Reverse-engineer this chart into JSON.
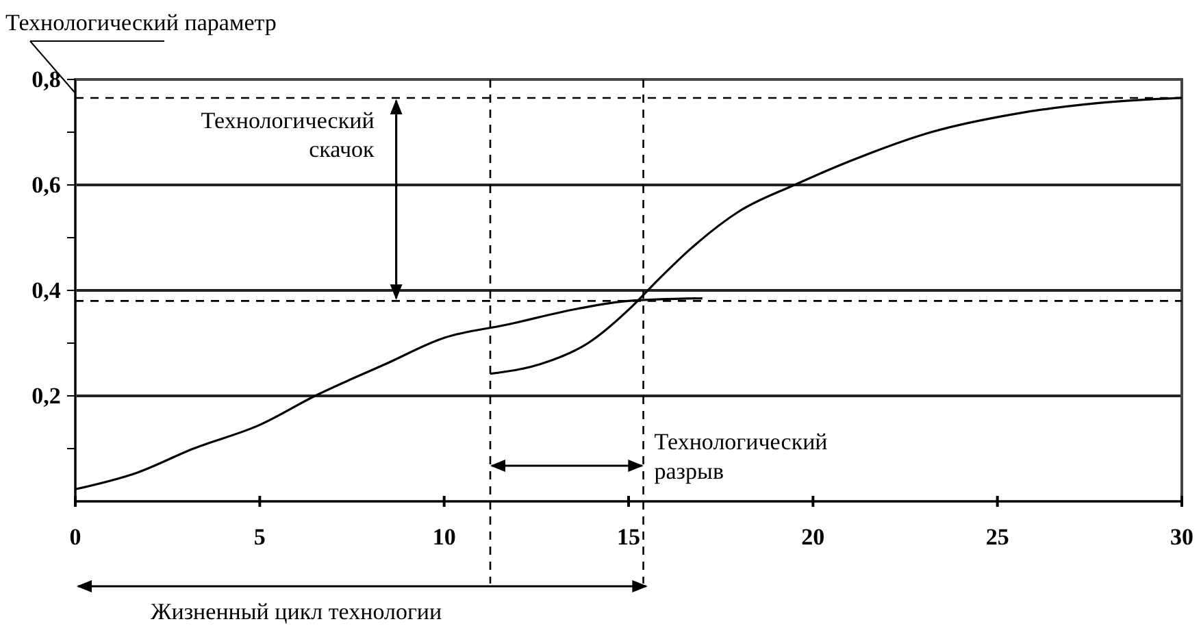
{
  "chart_data": {
    "type": "line",
    "ylabel": "Технологический параметр",
    "xlim": [
      0,
      30
    ],
    "xticks": [
      0,
      5,
      10,
      15,
      20,
      25,
      30
    ],
    "ylim": [
      0,
      0.8
    ],
    "yticks": [
      {
        "value": 0.1,
        "label": null
      },
      {
        "value": 0.2,
        "label": "0,2"
      },
      {
        "value": 0.3,
        "label": null
      },
      {
        "value": 0.4,
        "label": "0,4"
      },
      {
        "value": 0.5,
        "label": null
      },
      {
        "value": 0.6,
        "label": "0,6"
      },
      {
        "value": 0.7,
        "label": null
      },
      {
        "value": 0.8,
        "label": "0,8"
      }
    ],
    "grid": "y",
    "series": [
      {
        "color": "#000000",
        "x": [
          0,
          1.7,
          3.2,
          5,
          6.5,
          8.4,
          10,
          11.7,
          13.6,
          15,
          17
        ],
        "values": [
          0.023,
          0.055,
          0.1,
          0.145,
          0.2,
          0.26,
          0.31,
          0.335,
          0.365,
          0.38,
          0.385
        ]
      },
      {
        "color": "#000000",
        "x": [
          11.25,
          12.6,
          13.9,
          15.1,
          15.8,
          16.7,
          18,
          19.5,
          21,
          23.2,
          25.5,
          27.7,
          30
        ],
        "values": [
          0.242,
          0.26,
          0.3,
          0.37,
          0.42,
          0.48,
          0.55,
          0.6,
          0.645,
          0.7,
          0.735,
          0.755,
          0.765
        ]
      }
    ],
    "ref_lines": [
      {
        "axis": "y",
        "value": 0.765,
        "line_style": "dashed",
        "color": "#000000"
      },
      {
        "axis": "y",
        "value": 0.38,
        "line_style": "dashed",
        "color": "#000000"
      },
      {
        "axis": "x",
        "value": 11.25,
        "line_style": "dashed",
        "color": "#000000"
      },
      {
        "axis": "x",
        "value": 15.4,
        "line_style": "dashed",
        "color": "#000000"
      }
    ],
    "annotations": [
      {
        "text": "Технологический скачок",
        "x": 8.7,
        "y": 0.765
      },
      "Технологический разрыв",
      "Жизненный цикл технологии"
    ]
  }
}
